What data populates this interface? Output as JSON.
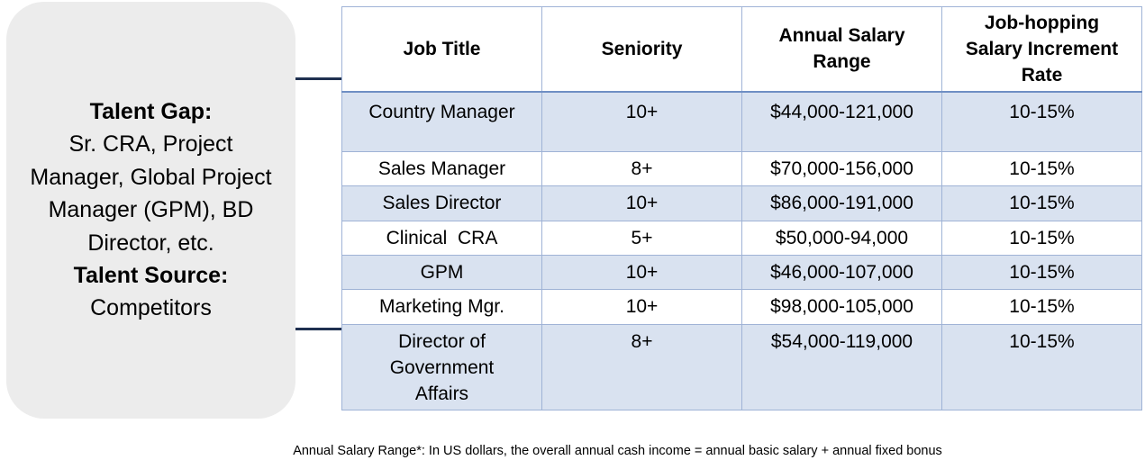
{
  "side_panel": {
    "gap_heading": "Talent Gap:",
    "gap_lines": [
      "Sr. CRA, Project",
      "Manager, Global Project",
      "Manager (GPM), BD",
      "Director, etc."
    ],
    "source_heading": "Talent Source:",
    "source_text": "Competitors"
  },
  "table": {
    "headers": {
      "job_title": "Job Title",
      "seniority": "Seniority",
      "salary_line1": "Annual Salary",
      "salary_line2": "Range",
      "increment_line1": "Job-hopping",
      "increment_line2": "Salary Increment",
      "increment_line3": "Rate"
    },
    "rows": [
      {
        "title": "Country Manager",
        "seniority": "10+",
        "salary": "$44,000-121,000",
        "rate": "10-15%"
      },
      {
        "title": "Sales Manager",
        "seniority": "8+",
        "salary": "$70,000-156,000",
        "rate": "10-15%"
      },
      {
        "title": "Sales Director",
        "seniority": "10+",
        "salary": "$86,000-191,000",
        "rate": "10-15%"
      },
      {
        "title": "Clinical  CRA",
        "seniority": "5+",
        "salary": "$50,000-94,000",
        "rate": "10-15%"
      },
      {
        "title": "GPM",
        "seniority": "10+",
        "salary": "$46,000-107,000",
        "rate": "10-15%"
      },
      {
        "title": "Marketing Mgr.",
        "seniority": "10+",
        "salary": "$98,000-105,000",
        "rate": "10-15%"
      },
      {
        "title_lines": [
          "Director of",
          "Government",
          "Affairs"
        ],
        "seniority": "8+",
        "salary": "$54,000-119,000",
        "rate": "10-15%"
      }
    ]
  },
  "footnote": "Annual Salary Range*: In US dollars, the overall annual cash income = annual basic salary + annual fixed bonus",
  "colors": {
    "panel_bg": "#ececec",
    "row_shade": "#d9e2f0",
    "border": "#9fb3d6",
    "connector": "#1f3050"
  }
}
